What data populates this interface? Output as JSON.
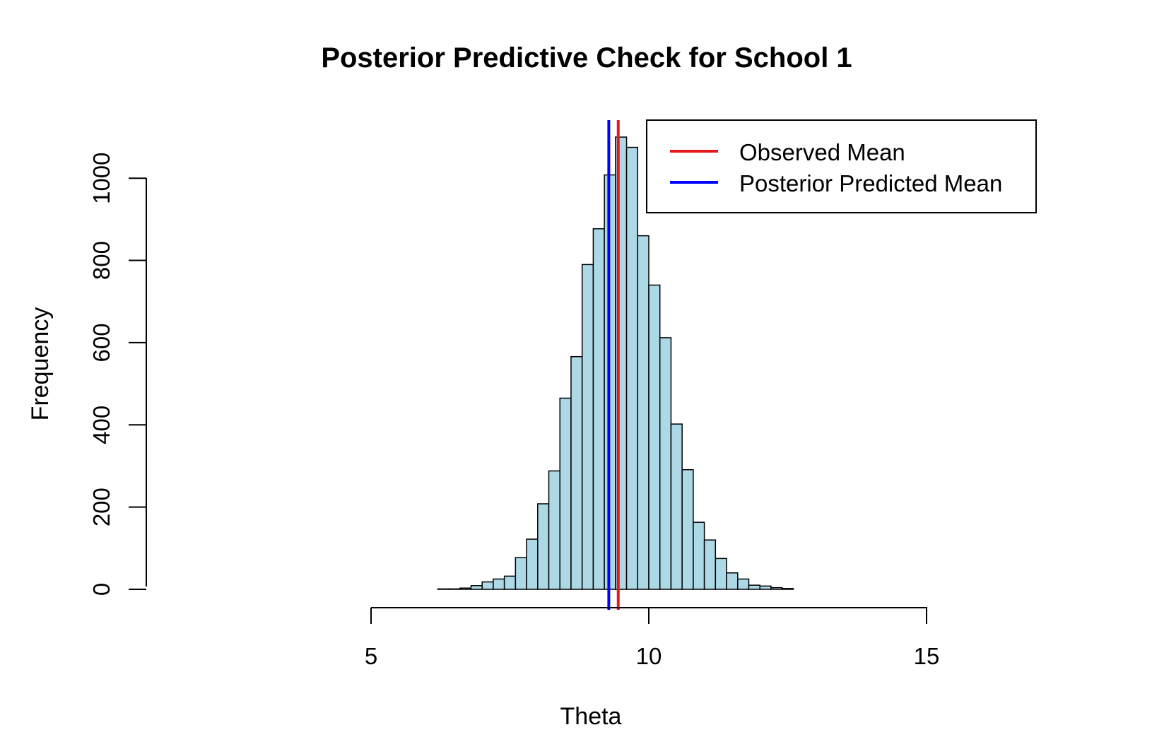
{
  "chart_data": {
    "type": "bar",
    "title": "Posterior Predictive Check for School 1",
    "xlabel": "Theta",
    "ylabel": "Frequency",
    "xlim": [
      4.2,
      16.5
    ],
    "ylim": [
      0,
      1150
    ],
    "x_ticks": [
      {
        "value": 5,
        "label": "5"
      },
      {
        "value": 10,
        "label": "10"
      },
      {
        "value": 15,
        "label": "15"
      }
    ],
    "y_ticks": [
      {
        "value": 0,
        "label": "0"
      },
      {
        "value": 200,
        "label": "200"
      },
      {
        "value": 400,
        "label": "400"
      },
      {
        "value": 600,
        "label": "600"
      },
      {
        "value": 800,
        "label": "800"
      },
      {
        "value": 1000,
        "label": "1000"
      }
    ],
    "bin_width": 0.2,
    "bin_start": 5.8,
    "histogram_bins": [
      0,
      0,
      1,
      1,
      3,
      9,
      18,
      25,
      32,
      77,
      122,
      208,
      288,
      465,
      566,
      790,
      877,
      1008,
      1100,
      1075,
      860,
      740,
      612,
      402,
      291,
      163,
      120,
      75,
      40,
      25,
      10,
      8,
      4,
      2
    ],
    "bar_fill": "#ADD8E6",
    "bar_stroke": "#000000",
    "vertical_lines": [
      {
        "name": "Observed Mean",
        "x": 9.45,
        "color": "#E31A1C"
      },
      {
        "name": "Posterior Predicted Mean",
        "x": 9.28,
        "color": "#0000FF"
      }
    ],
    "legend": {
      "position": "top-right",
      "entries": [
        {
          "label": "Observed Mean",
          "color": "#E31A1C"
        },
        {
          "label": "Posterior Predicted Mean",
          "color": "#0000FF"
        }
      ]
    },
    "grid": false
  }
}
